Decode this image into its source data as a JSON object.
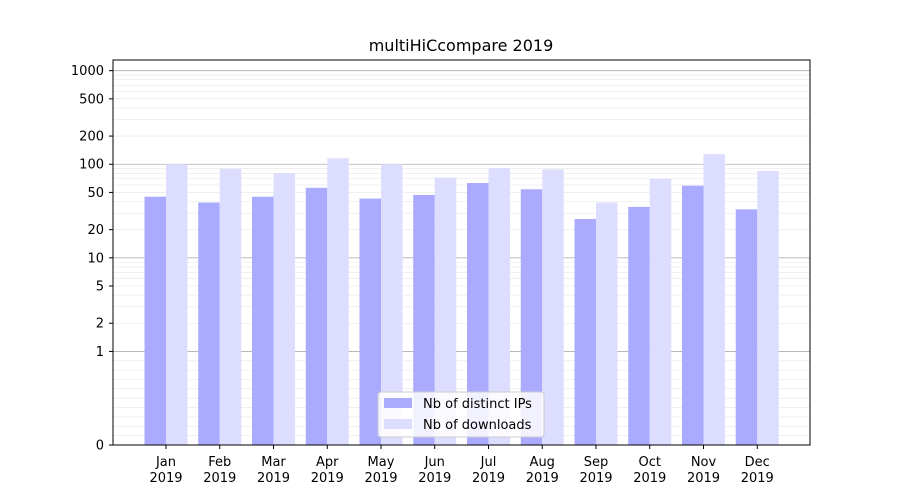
{
  "chart_data": {
    "type": "bar",
    "title": "multiHiCcompare 2019",
    "xlabel": "",
    "ylabel": "",
    "yscale": "symlog",
    "ylim": [
      0,
      1300
    ],
    "yticks": [
      0,
      1,
      2,
      5,
      10,
      20,
      50,
      100,
      200,
      500,
      1000
    ],
    "categories": [
      {
        "month": "Jan",
        "year": "2019"
      },
      {
        "month": "Feb",
        "year": "2019"
      },
      {
        "month": "Mar",
        "year": "2019"
      },
      {
        "month": "Apr",
        "year": "2019"
      },
      {
        "month": "May",
        "year": "2019"
      },
      {
        "month": "Jun",
        "year": "2019"
      },
      {
        "month": "Jul",
        "year": "2019"
      },
      {
        "month": "Aug",
        "year": "2019"
      },
      {
        "month": "Sep",
        "year": "2019"
      },
      {
        "month": "Oct",
        "year": "2019"
      },
      {
        "month": "Nov",
        "year": "2019"
      },
      {
        "month": "Dec",
        "year": "2019"
      }
    ],
    "series": [
      {
        "name": "Nb of distinct IPs",
        "color": "#aaaaff",
        "values": [
          45,
          39,
          45,
          56,
          43,
          47,
          63,
          54,
          26,
          35,
          59,
          33
        ]
      },
      {
        "name": "Nb of downloads",
        "color": "#ddddff",
        "values": [
          100,
          89,
          80,
          116,
          100,
          72,
          91,
          88,
          39,
          70,
          128,
          85
        ]
      }
    ],
    "legend_position": "lower-center",
    "grid": true
  }
}
